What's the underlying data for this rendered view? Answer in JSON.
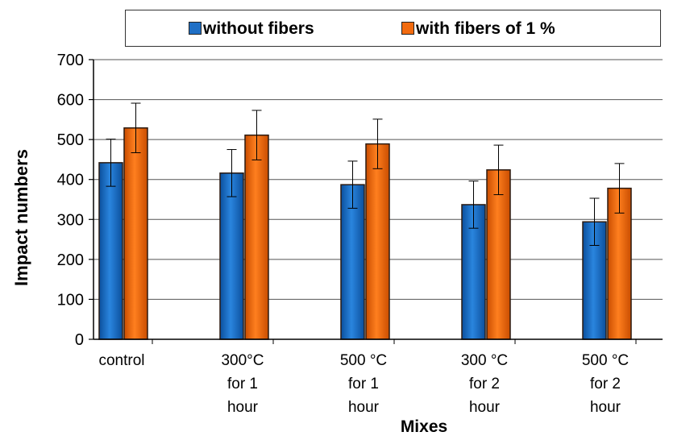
{
  "chart_data": {
    "type": "bar",
    "title": "",
    "xlabel": "Mixes",
    "ylabel": "Impact numbers",
    "ylim": [
      0,
      700
    ],
    "yticks": [
      "0",
      "100",
      "200",
      "300",
      "400",
      "500",
      "600",
      "700"
    ],
    "categories": [
      [
        "control"
      ],
      [
        "300°C",
        "for 1",
        "hour"
      ],
      [
        "500 °C",
        "for 1",
        "hour"
      ],
      [
        "300 °C",
        "for 2",
        "hour"
      ],
      [
        "500 °C",
        "for 2",
        "hour"
      ]
    ],
    "series": [
      {
        "name": "without fibers",
        "color": "#1f6fc5",
        "values": [
          442,
          416,
          387,
          337,
          294
        ],
        "errors": [
          59,
          59,
          59,
          59,
          59
        ]
      },
      {
        "name": "with fibers  of 1 %",
        "color": "#f26b0f",
        "values": [
          529,
          511,
          489,
          424,
          378
        ],
        "errors": [
          62,
          62,
          62,
          62,
          62
        ]
      }
    ],
    "grid": true,
    "legend": "top"
  }
}
